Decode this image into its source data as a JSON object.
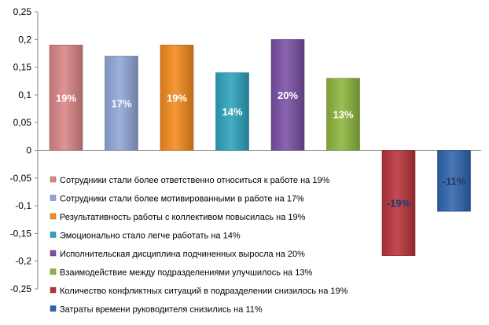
{
  "chart_data": {
    "type": "bar",
    "title": "",
    "xlabel": "",
    "ylabel": "",
    "ylim": [
      -0.25,
      0.25
    ],
    "yticks": [
      0.25,
      0.2,
      0.15,
      0.1,
      0.05,
      0,
      -0.05,
      -0.1,
      -0.15,
      -0.2,
      -0.25
    ],
    "ytick_labels": [
      "0,25",
      "0,2",
      "0,15",
      "0,1",
      "0,05",
      "0",
      "-0,05",
      "-0,1",
      "-0,15",
      "-0,2",
      "-0,25"
    ],
    "grid": false,
    "legend_position": "lower-left",
    "series": [
      {
        "name": "Сотрудники  стали более ответственно  относиться к работе на 19%",
        "value": 0.19,
        "label": "19%",
        "color": "#d98585",
        "label_color": "#ffffff"
      },
      {
        "name": "Сотрудники  стали более мотивированными в работе на 17%",
        "value": 0.17,
        "label": "17%",
        "color": "#8fa6d6",
        "label_color": "#ffffff"
      },
      {
        "name": "Результативность работы с коллективом повысилась на 19%",
        "value": 0.19,
        "label": "19%",
        "color": "#f28a1c",
        "label_color": "#ffffff"
      },
      {
        "name": "Эмоционально стало легче работать на 14%",
        "value": 0.14,
        "label": "14%",
        "color": "#2ea3bd",
        "label_color": "#ffffff"
      },
      {
        "name": "Исполнительская дисциплина подчиненных выросла на 20%",
        "value": 0.2,
        "label": "20%",
        "color": "#7a4fa3",
        "label_color": "#ffffff"
      },
      {
        "name": "Взаимодействие  между подразделениями  улучшилось на 13%",
        "value": 0.13,
        "label": "13%",
        "color": "#8db53c",
        "label_color": "#ffffff"
      },
      {
        "name": "Количество конфликтных ситуаций в подразделении снизилось на 19%",
        "value": -0.19,
        "label": "-19%",
        "color": "#b8323a",
        "label_color": "#1f3a6b"
      },
      {
        "name": "Затраты времени  руководителя  снизились на 11%",
        "value": -0.11,
        "label": "-11%",
        "color": "#2f64ad",
        "label_color": "#1f3a6b"
      }
    ]
  }
}
